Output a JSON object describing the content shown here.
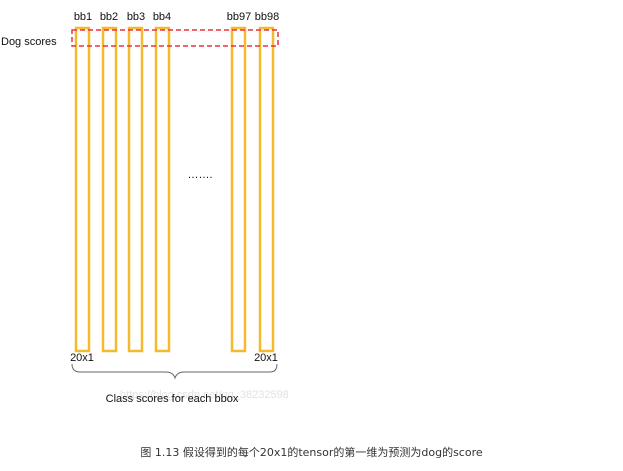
{
  "diagram": {
    "row_label": "Dog scores",
    "columns": [
      {
        "label": "bb1"
      },
      {
        "label": "bb2"
      },
      {
        "label": "bb3"
      },
      {
        "label": "bb4"
      },
      {
        "label": "bb97"
      },
      {
        "label": "bb98"
      }
    ],
    "ellipsis": "…….",
    "dim_left": "20x1",
    "dim_right": "20x1",
    "brace_label": "Class scores for each bbox",
    "watermark": "https://blog.csdn.net/qq_38232598",
    "colors": {
      "bar": "#f5b92e",
      "highlight": "#e8333a"
    }
  },
  "caption": "图 1.13 假设得到的每个20x1的tensor的第一维为预测为dog的score"
}
